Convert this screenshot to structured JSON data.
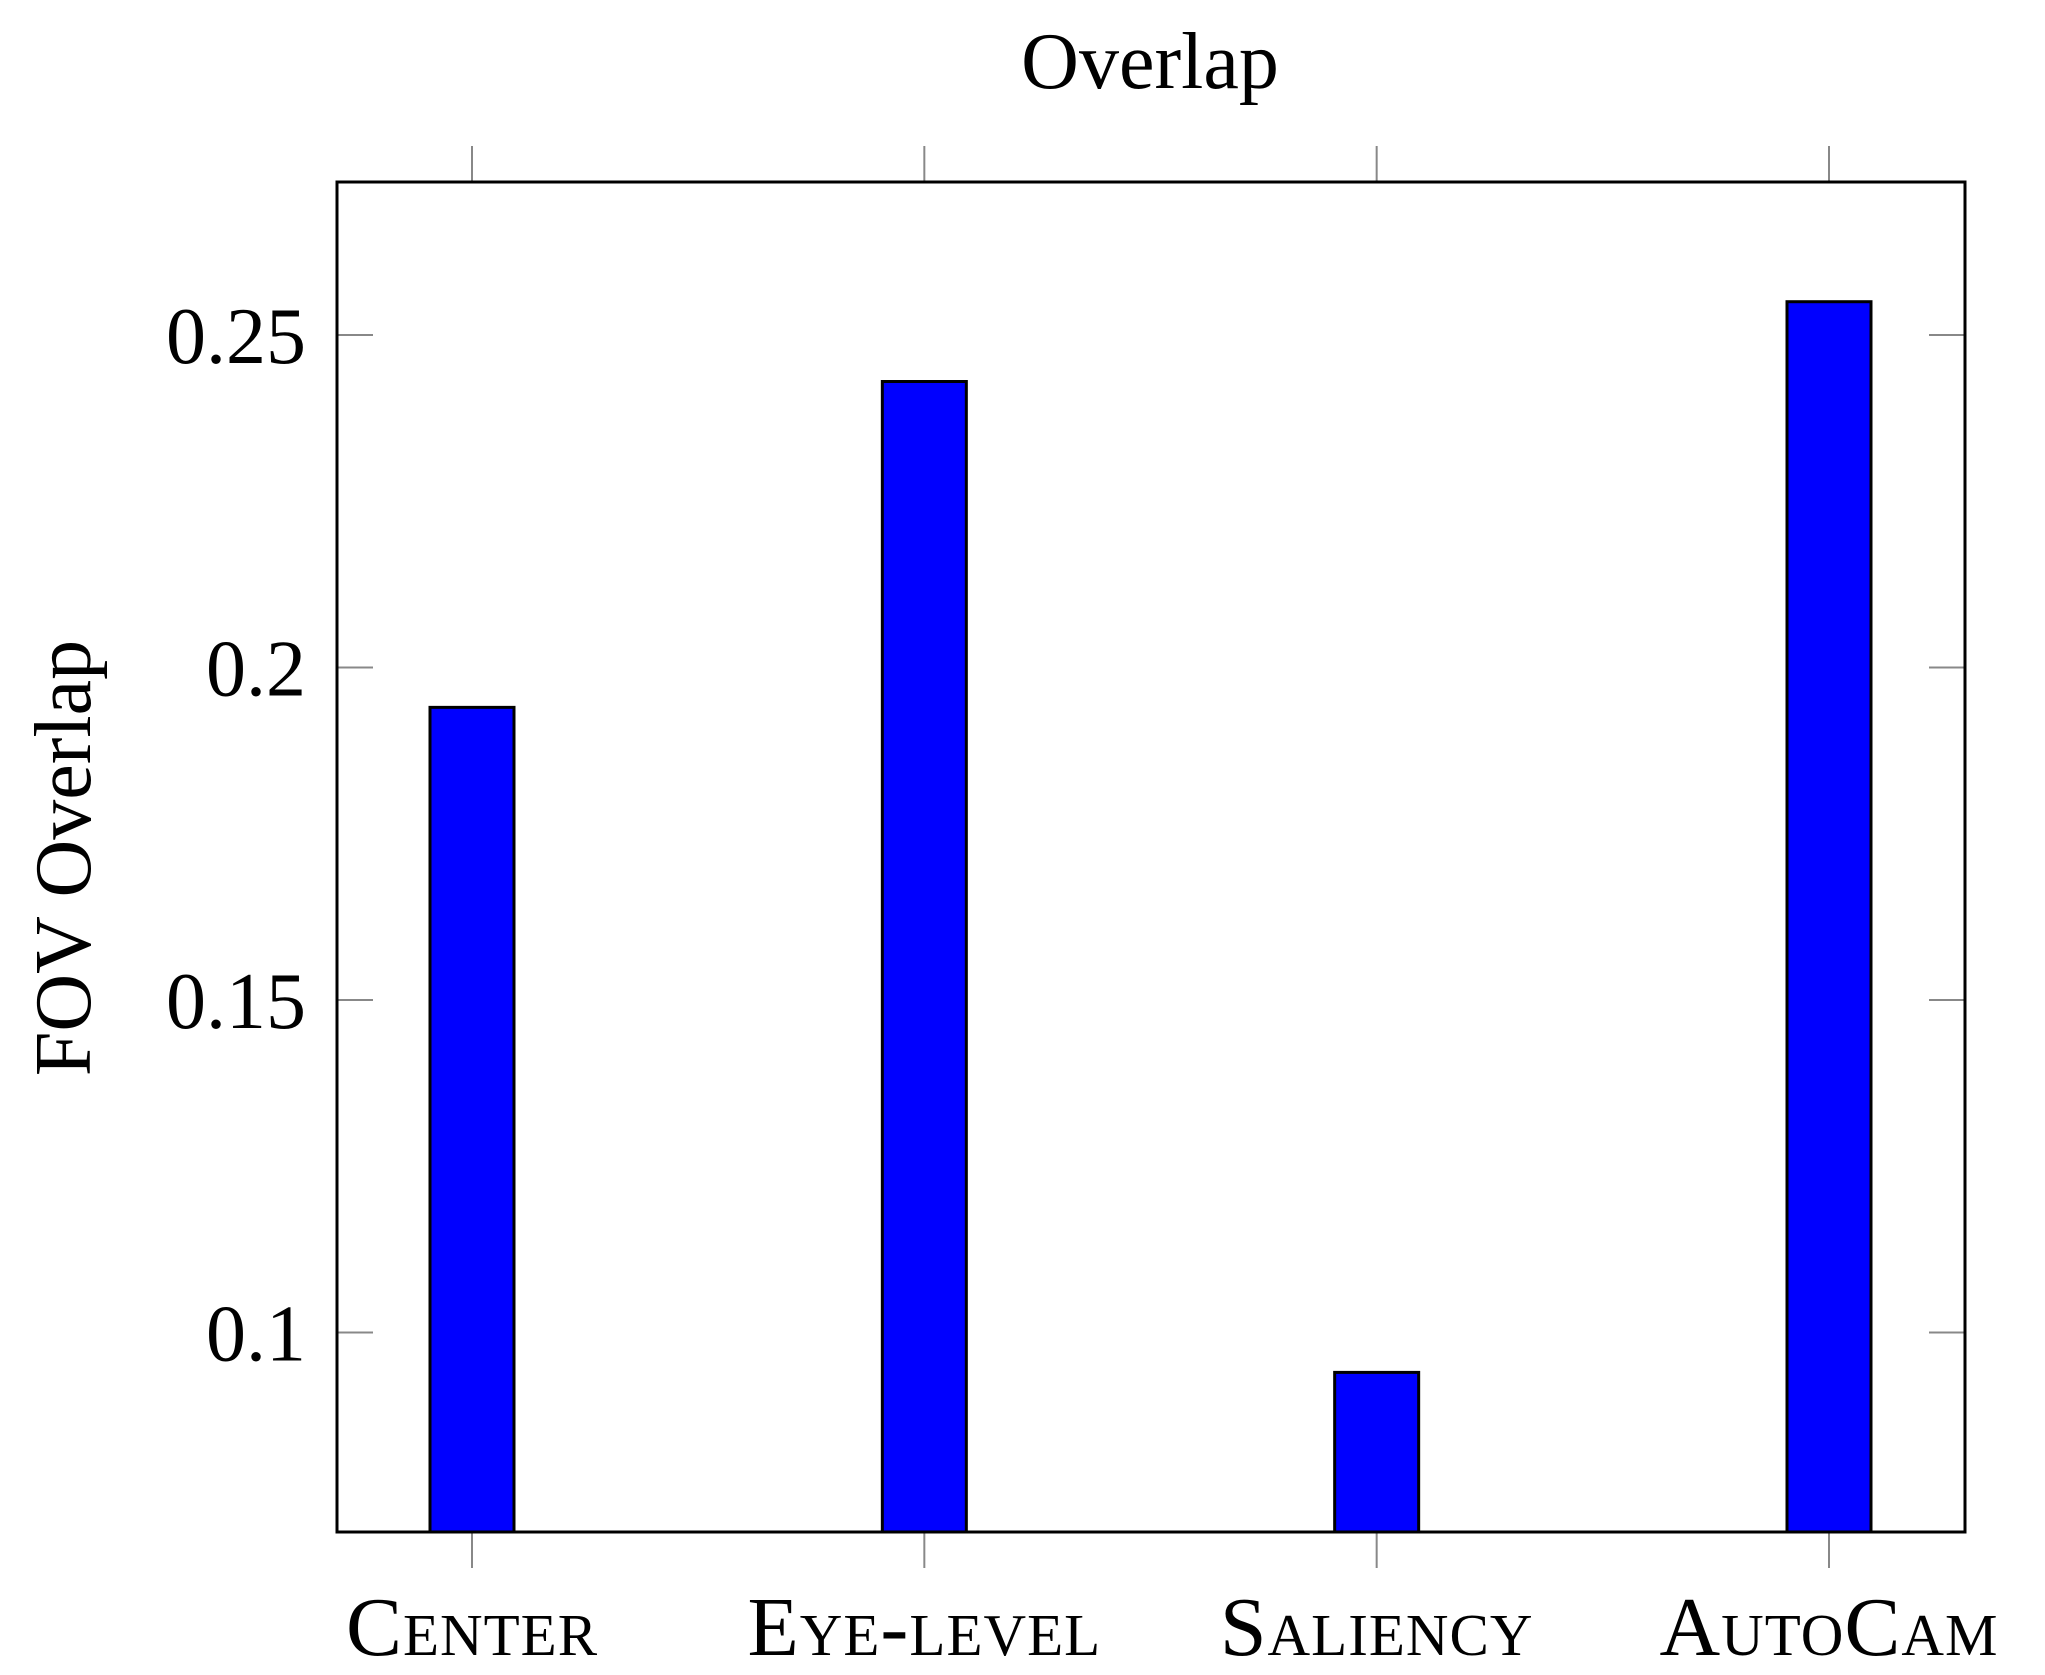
{
  "chart_data": {
    "type": "bar",
    "title": "Overlap",
    "xlabel": "",
    "ylabel": "FOV Overlap",
    "categories": [
      "Center",
      "Eye-level",
      "Saliency",
      "AutoCam"
    ],
    "values": [
      0.194,
      0.243,
      0.094,
      0.255
    ],
    "ylim": [
      0.07,
      0.273
    ],
    "yticks": [
      0.1,
      0.15,
      0.2,
      0.25
    ],
    "ytick_labels": [
      "0.1",
      "0.15",
      "0.2",
      "0.25"
    ],
    "grid": false,
    "legend": "none",
    "bar_color": "#0000ff",
    "bar_edge_color": "#000000"
  }
}
